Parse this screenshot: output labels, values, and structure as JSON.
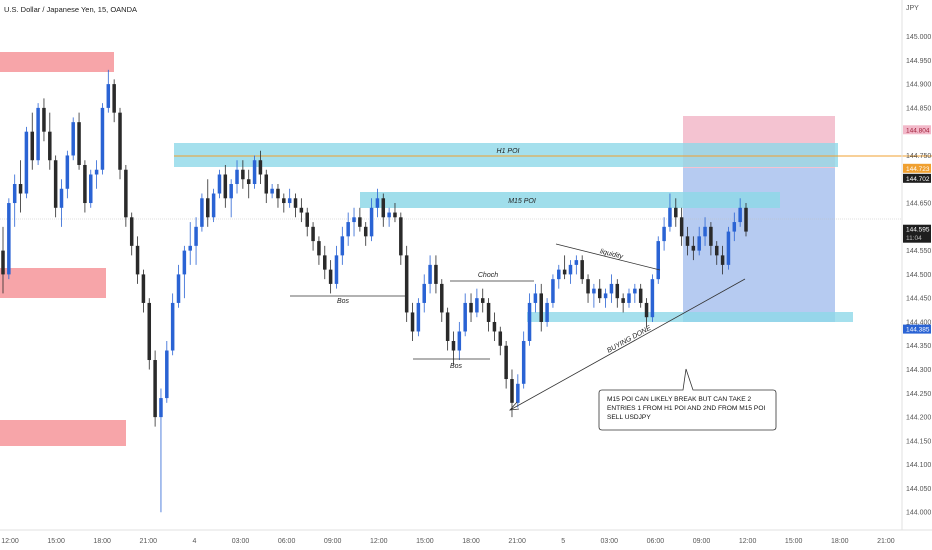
{
  "chart_data": {
    "type": "candlestick",
    "title": "U.S. Dollar / Japanese Yen, 15, OANDA",
    "currency": "JPY",
    "ylim": [
      143.99,
      145.06
    ],
    "y_ticks": [
      145.0,
      144.95,
      144.9,
      144.85,
      144.75,
      144.7,
      144.65,
      144.55,
      144.5,
      144.45,
      144.4,
      144.35,
      144.3,
      144.25,
      144.2,
      144.15,
      144.1,
      144.05,
      144.0
    ],
    "x_ticks": [
      "12:00",
      "15:00",
      "18:00",
      "21:00",
      "4",
      "03:00",
      "06:00",
      "09:00",
      "12:00",
      "15:00",
      "18:00",
      "21:00",
      "5",
      "03:00",
      "06:00",
      "09:00",
      "12:00",
      "15:00",
      "18:00",
      "21:00"
    ],
    "colors": {
      "up": "#2a63d4",
      "down": "#2a2a2a",
      "supply": "#f7a5a9",
      "poi": "#8fd8e8",
      "target": "#f2b8c9",
      "risk": "#a9c2ef",
      "orange": "#f0a030"
    },
    "price_tags": [
      {
        "label": "144.804",
        "value": 144.804,
        "color": "#f2b8c9",
        "text_color": "#a0203a"
      },
      {
        "label": "144.723",
        "value": 144.723,
        "color": "#f0a030",
        "text_color": "#ffffff"
      },
      {
        "label": "144.702",
        "value": 144.702,
        "color": "#1e1e1e",
        "text_color": "#ffffff"
      },
      {
        "label": "144.595",
        "value": 144.595,
        "color": "#1e1e1e",
        "text_color": "#ffffff",
        "sub": "11:04"
      },
      {
        "label": "144.385",
        "value": 144.385,
        "color": "#2a63d4",
        "text_color": "#ffffff"
      }
    ],
    "zones": [
      {
        "label": "H1 POI",
        "y_top": 144.736,
        "y_bottom": 144.702
      },
      {
        "label": "M15 POI",
        "y_top": 144.655,
        "y_bottom": 144.635
      },
      {
        "label": "",
        "y_top": 144.392,
        "y_bottom": 144.378
      }
    ],
    "annotations": {
      "liquidity": "liquidity",
      "choch": "Choch",
      "bos1": "Bos",
      "bos2": "Bos",
      "buying_done": "BUYING DONE",
      "note_lines": [
        "M15 POI CAN LIKELY BREAK BUT CAN TAKE 2",
        "ENTRIES 1 FROM H1 POI AND 2ND FROM M15 POI",
        "SELL USDJPY"
      ]
    },
    "candles": [
      [
        144.55,
        144.6,
        144.46,
        144.5
      ],
      [
        144.5,
        144.66,
        144.49,
        144.65
      ],
      [
        144.65,
        144.71,
        144.6,
        144.69
      ],
      [
        144.69,
        144.74,
        144.63,
        144.67
      ],
      [
        144.67,
        144.81,
        144.66,
        144.8
      ],
      [
        144.8,
        144.84,
        144.72,
        144.74
      ],
      [
        144.74,
        144.86,
        144.73,
        144.85
      ],
      [
        144.85,
        144.87,
        144.78,
        144.8
      ],
      [
        144.8,
        144.84,
        144.72,
        144.74
      ],
      [
        144.74,
        144.75,
        144.62,
        144.64
      ],
      [
        144.64,
        144.7,
        144.6,
        144.68
      ],
      [
        144.68,
        144.76,
        144.66,
        144.75
      ],
      [
        144.75,
        144.83,
        144.74,
        144.82
      ],
      [
        144.82,
        144.84,
        144.72,
        144.73
      ],
      [
        144.73,
        144.74,
        144.63,
        144.65
      ],
      [
        144.65,
        144.72,
        144.64,
        144.71
      ],
      [
        144.71,
        144.74,
        144.68,
        144.72
      ],
      [
        144.72,
        144.86,
        144.71,
        144.85
      ],
      [
        144.85,
        144.93,
        144.84,
        144.9
      ],
      [
        144.9,
        144.91,
        144.82,
        144.84
      ],
      [
        144.84,
        144.85,
        144.7,
        144.72
      ],
      [
        144.72,
        144.73,
        144.6,
        144.62
      ],
      [
        144.62,
        144.63,
        144.54,
        144.56
      ],
      [
        144.56,
        144.58,
        144.48,
        144.5
      ],
      [
        144.5,
        144.51,
        144.42,
        144.44
      ],
      [
        144.44,
        144.45,
        144.3,
        144.32
      ],
      [
        144.32,
        144.34,
        144.18,
        144.2
      ],
      [
        144.2,
        144.26,
        144.0,
        144.24
      ],
      [
        144.24,
        144.36,
        144.23,
        144.34
      ],
      [
        144.34,
        144.46,
        144.33,
        144.44
      ],
      [
        144.44,
        144.52,
        144.43,
        144.5
      ],
      [
        144.5,
        144.56,
        144.45,
        144.55
      ],
      [
        144.55,
        144.61,
        144.52,
        144.56
      ],
      [
        144.56,
        144.62,
        144.52,
        144.6
      ],
      [
        144.6,
        144.67,
        144.59,
        144.66
      ],
      [
        144.66,
        144.7,
        144.6,
        144.62
      ],
      [
        144.62,
        144.68,
        144.61,
        144.67
      ],
      [
        144.67,
        144.72,
        144.66,
        144.71
      ],
      [
        144.71,
        144.73,
        144.64,
        144.66
      ],
      [
        144.66,
        144.7,
        144.62,
        144.69
      ],
      [
        144.69,
        144.74,
        144.67,
        144.72
      ],
      [
        144.72,
        144.74,
        144.68,
        144.7
      ],
      [
        144.7,
        144.72,
        144.66,
        144.69
      ],
      [
        144.69,
        144.75,
        144.68,
        144.74
      ],
      [
        144.74,
        144.76,
        144.69,
        144.71
      ],
      [
        144.71,
        144.72,
        144.65,
        144.67
      ],
      [
        144.67,
        144.69,
        144.66,
        144.68
      ],
      [
        144.68,
        144.69,
        144.64,
        144.66
      ],
      [
        144.66,
        144.67,
        144.63,
        144.65
      ],
      [
        144.65,
        144.68,
        144.64,
        144.66
      ],
      [
        144.66,
        144.67,
        144.62,
        144.64
      ],
      [
        144.64,
        144.66,
        144.61,
        144.63
      ],
      [
        144.63,
        144.64,
        144.58,
        144.6
      ],
      [
        144.6,
        144.61,
        144.55,
        144.57
      ],
      [
        144.57,
        144.58,
        144.52,
        144.54
      ],
      [
        144.54,
        144.56,
        144.49,
        144.51
      ],
      [
        144.51,
        144.53,
        144.46,
        144.48
      ],
      [
        144.48,
        144.56,
        144.47,
        144.54
      ],
      [
        144.54,
        144.6,
        144.52,
        144.58
      ],
      [
        144.58,
        144.63,
        144.56,
        144.61
      ],
      [
        144.61,
        144.64,
        144.58,
        144.62
      ],
      [
        144.62,
        144.64,
        144.59,
        144.6
      ],
      [
        144.6,
        144.61,
        144.56,
        144.58
      ],
      [
        144.58,
        144.66,
        144.57,
        144.64
      ],
      [
        144.64,
        144.68,
        144.62,
        144.66
      ],
      [
        144.66,
        144.67,
        144.6,
        144.62
      ],
      [
        144.62,
        144.64,
        144.6,
        144.63
      ],
      [
        144.63,
        144.65,
        144.61,
        144.62
      ],
      [
        144.62,
        144.63,
        144.52,
        144.54
      ],
      [
        144.54,
        144.56,
        144.4,
        144.42
      ],
      [
        144.42,
        144.44,
        144.36,
        144.38
      ],
      [
        144.38,
        144.45,
        144.37,
        144.44
      ],
      [
        144.44,
        144.5,
        144.42,
        144.48
      ],
      [
        144.48,
        144.54,
        144.46,
        144.52
      ],
      [
        144.52,
        144.54,
        144.46,
        144.48
      ],
      [
        144.48,
        144.49,
        144.4,
        144.42
      ],
      [
        144.42,
        144.43,
        144.34,
        144.36
      ],
      [
        144.36,
        144.38,
        144.31,
        144.34
      ],
      [
        144.34,
        144.4,
        144.32,
        144.38
      ],
      [
        144.38,
        144.46,
        144.37,
        144.44
      ],
      [
        144.44,
        144.46,
        144.4,
        144.42
      ],
      [
        144.42,
        144.47,
        144.41,
        144.45
      ],
      [
        144.45,
        144.47,
        144.42,
        144.44
      ],
      [
        144.44,
        144.45,
        144.38,
        144.4
      ],
      [
        144.4,
        144.42,
        144.36,
        144.38
      ],
      [
        144.38,
        144.39,
        144.33,
        144.35
      ],
      [
        144.35,
        144.36,
        144.26,
        144.28
      ],
      [
        144.28,
        144.3,
        144.2,
        144.23
      ],
      [
        144.23,
        144.29,
        144.22,
        144.27
      ],
      [
        144.27,
        144.38,
        144.26,
        144.36
      ],
      [
        144.36,
        144.46,
        144.35,
        144.44
      ],
      [
        144.44,
        144.48,
        144.42,
        144.46
      ],
      [
        144.46,
        144.48,
        144.38,
        144.4
      ],
      [
        144.4,
        144.45,
        144.39,
        144.44
      ],
      [
        144.44,
        144.5,
        144.43,
        144.49
      ],
      [
        144.49,
        144.52,
        144.47,
        144.51
      ],
      [
        144.51,
        144.54,
        144.49,
        144.5
      ],
      [
        144.5,
        144.53,
        144.48,
        144.52
      ],
      [
        144.52,
        144.54,
        144.5,
        144.53
      ],
      [
        144.53,
        144.54,
        144.48,
        144.49
      ],
      [
        144.49,
        144.5,
        144.44,
        144.46
      ],
      [
        144.46,
        144.48,
        144.43,
        144.47
      ],
      [
        144.47,
        144.49,
        144.44,
        144.45
      ],
      [
        144.45,
        144.47,
        144.43,
        144.46
      ],
      [
        144.46,
        144.5,
        144.44,
        144.48
      ],
      [
        144.48,
        144.49,
        144.43,
        144.45
      ],
      [
        144.45,
        144.46,
        144.42,
        144.44
      ],
      [
        144.44,
        144.47,
        144.43,
        144.46
      ],
      [
        144.46,
        144.48,
        144.44,
        144.47
      ],
      [
        144.47,
        144.48,
        144.43,
        144.44
      ],
      [
        144.44,
        144.45,
        144.39,
        144.41
      ],
      [
        144.41,
        144.5,
        144.4,
        144.49
      ],
      [
        144.49,
        144.58,
        144.48,
        144.57
      ],
      [
        144.57,
        144.62,
        144.55,
        144.6
      ],
      [
        144.6,
        144.67,
        144.59,
        144.64
      ],
      [
        144.64,
        144.66,
        144.6,
        144.62
      ],
      [
        144.62,
        144.64,
        144.56,
        144.58
      ],
      [
        144.58,
        144.6,
        144.54,
        144.56
      ],
      [
        144.56,
        144.58,
        144.53,
        144.55
      ],
      [
        144.55,
        144.6,
        144.54,
        144.58
      ],
      [
        144.58,
        144.62,
        144.56,
        144.6
      ],
      [
        144.6,
        144.61,
        144.54,
        144.56
      ],
      [
        144.56,
        144.57,
        144.52,
        144.54
      ],
      [
        144.54,
        144.56,
        144.5,
        144.52
      ],
      [
        144.52,
        144.6,
        144.51,
        144.59
      ],
      [
        144.59,
        144.63,
        144.57,
        144.61
      ],
      [
        144.61,
        144.66,
        144.6,
        144.64
      ],
      [
        144.64,
        144.65,
        144.58,
        144.59
      ]
    ]
  }
}
